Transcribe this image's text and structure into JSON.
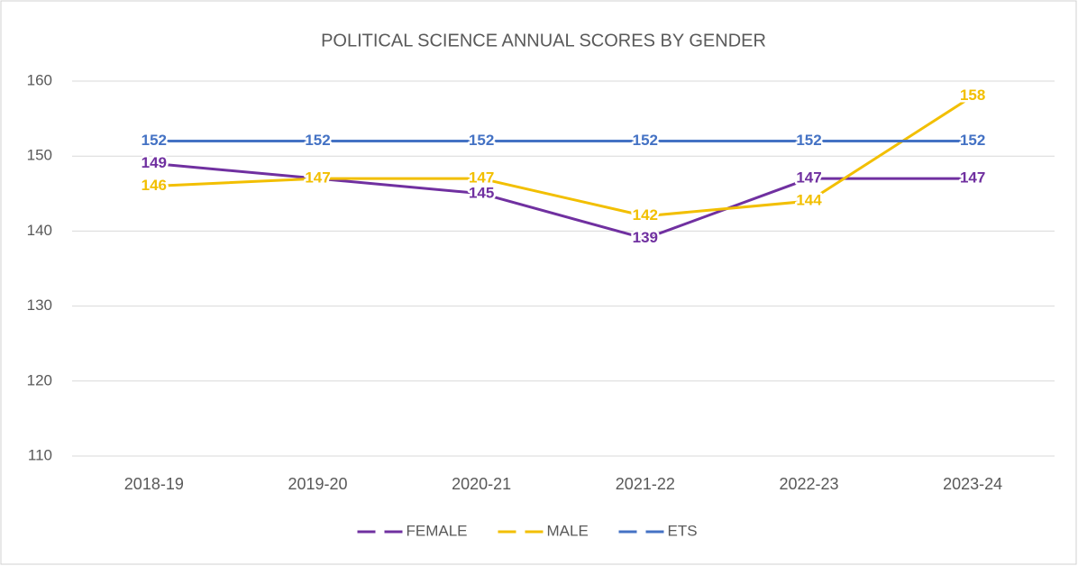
{
  "chart_data": {
    "type": "line",
    "title": "POLITICAL SCIENCE ANNUAL SCORES BY GENDER",
    "categories": [
      "2018-19",
      "2019-20",
      "2020-21",
      "2021-22",
      "2022-23",
      "2023-24"
    ],
    "series": [
      {
        "name": "FEMALE",
        "color": "#7030a0",
        "values": [
          149,
          147,
          145,
          139,
          147,
          147
        ]
      },
      {
        "name": "MALE",
        "color": "#f2bf00",
        "values": [
          146,
          147,
          147,
          142,
          144,
          158
        ]
      },
      {
        "name": "ETS",
        "color": "#4472c4",
        "values": [
          152,
          152,
          152,
          152,
          152,
          152
        ]
      }
    ],
    "ylim": [
      110,
      160
    ],
    "yticks": [
      110,
      120,
      130,
      140,
      150,
      160
    ],
    "grid": true,
    "legend": "bottom"
  }
}
